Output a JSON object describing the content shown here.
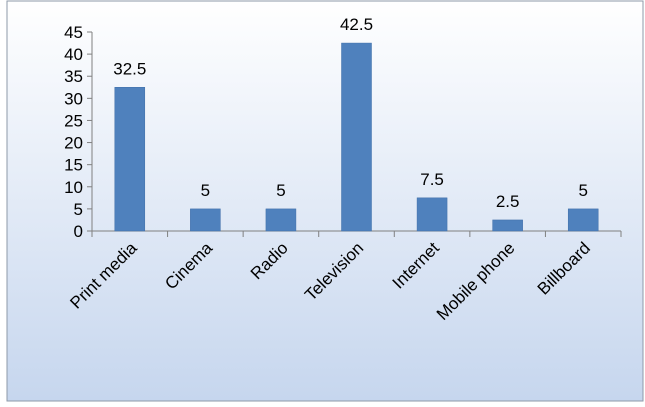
{
  "chart_data": {
    "type": "bar",
    "title": "",
    "xlabel": "",
    "ylabel": "",
    "categories": [
      "Print media",
      "Cinema",
      "Radio",
      "Television",
      "Internet",
      "Mobile phone",
      "Billboard"
    ],
    "values": [
      32.5,
      5,
      5,
      42.5,
      7.5,
      2.5,
      5
    ],
    "data_labels": [
      "32.5",
      "5",
      "5",
      "42.5",
      "7.5",
      "2.5",
      "5"
    ],
    "ylim": [
      0,
      45
    ],
    "yticks": [
      0,
      5,
      10,
      15,
      20,
      25,
      30,
      35,
      40,
      45
    ],
    "grid": false,
    "legend": "none",
    "colors": {
      "bar": "#4f81bd",
      "bar_edge": "#3f6ea8",
      "bg_top": "#ffffff",
      "bg_bottom": "#c6d6ee",
      "border": "#8e9aa8",
      "axis": "#808080",
      "text": "#000000"
    }
  }
}
